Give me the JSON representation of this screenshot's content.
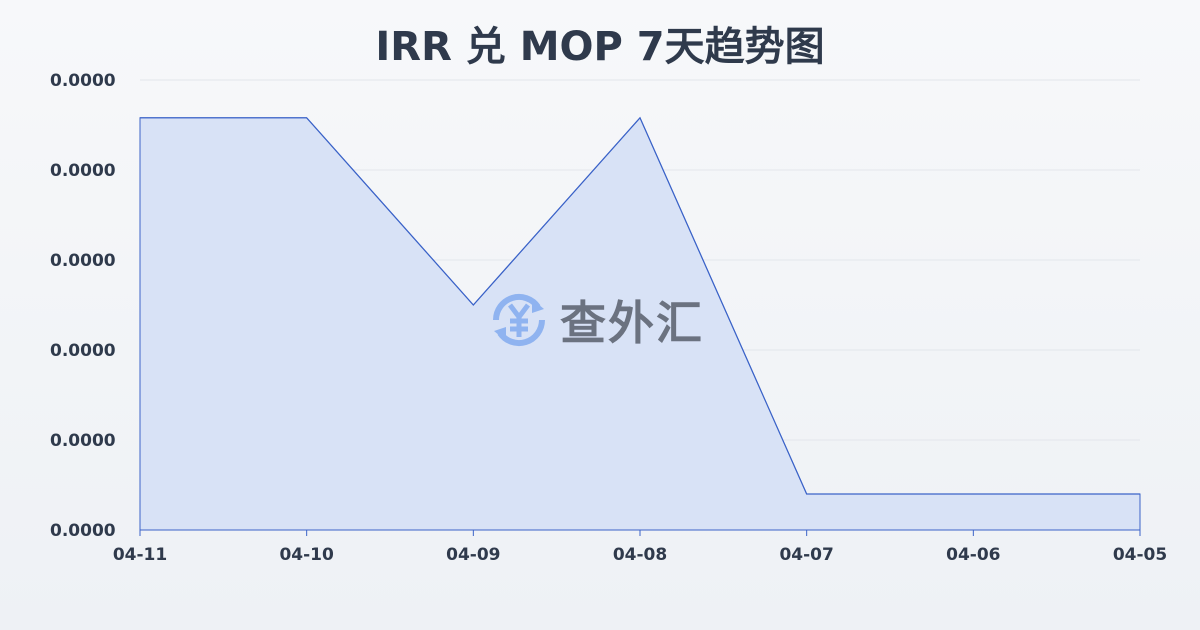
{
  "chart_data": {
    "type": "area",
    "title": "IRR 兑 MOP 7天趋势图",
    "categories": [
      "04-11",
      "04-10",
      "04-09",
      "04-08",
      "04-07",
      "04-06",
      "04-05"
    ],
    "values": [
      8.258e-06,
      8.258e-06,
      8.05e-06,
      8.258e-06,
      7.84e-06,
      7.84e-06,
      7.84e-06
    ],
    "ylim": [
      7.8e-06,
      8.3e-06
    ],
    "y_ticks": [
      7.8e-06,
      7.9e-06,
      8e-06,
      8.1e-06,
      8.2e-06,
      8.3e-06
    ],
    "y_tick_labels": [
      "0.0000",
      "0.0000",
      "0.0000",
      "0.0000",
      "0.0000",
      "0.0000"
    ],
    "grid": true,
    "line_color": "#3b63c8",
    "fill_color": "#d8e2f6"
  },
  "watermark": {
    "text": "查外汇",
    "icon": "yen-exchange-icon",
    "icon_color": "#8fb3f0"
  }
}
